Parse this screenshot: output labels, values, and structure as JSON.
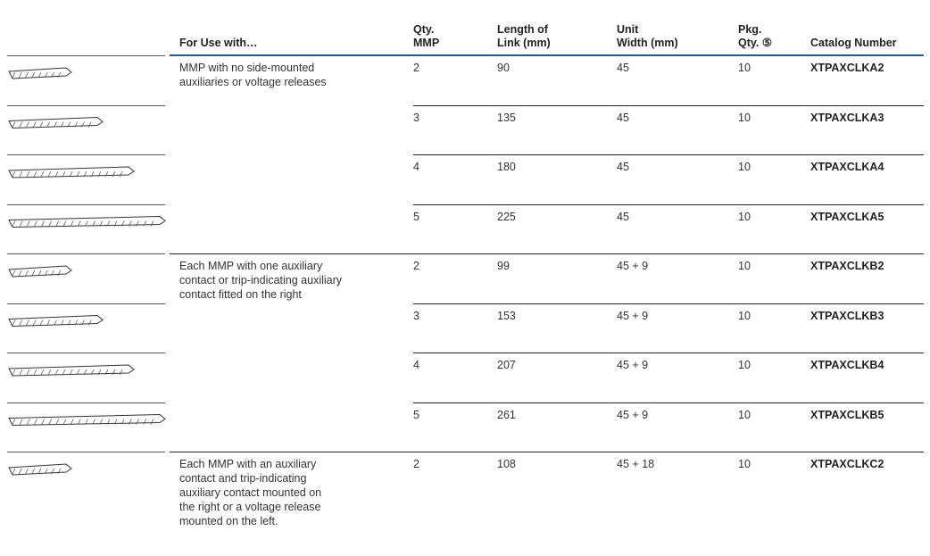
{
  "table": {
    "header": [
      [
        "For Use with…"
      ],
      [
        "Qty.",
        "MMP"
      ],
      [
        "Length of",
        "Link (mm)"
      ],
      [
        "Unit",
        "Width (mm)"
      ],
      [
        "Pkg.",
        "Qty. ⑤"
      ],
      [
        "Catalog Number"
      ]
    ],
    "groups": [
      {
        "use": [
          "MMP with no side-mounted",
          "auxiliaries or voltage releases"
        ],
        "rows": [
          [
            2,
            90,
            45,
            10,
            "XTPAXCLKA2"
          ],
          [
            3,
            135,
            45,
            10,
            "XTPAXCLKA3"
          ],
          [
            4,
            180,
            45,
            10,
            "XTPAXCLKA4"
          ],
          [
            5,
            225,
            45,
            10,
            "XTPAXCLKA5"
          ]
        ]
      },
      {
        "use": [
          "Each MMP with one auxiliary",
          "contact or trip-indicating auxiliary",
          "contact fitted on the right"
        ],
        "rows": [
          [
            2,
            99,
            "45 + 9",
            10,
            "XTPAXCLKB2"
          ],
          [
            3,
            153,
            "45 + 9",
            10,
            "XTPAXCLKB3"
          ],
          [
            4,
            207,
            "45 + 9",
            10,
            "XTPAXCLKB4"
          ],
          [
            5,
            261,
            "45 + 9",
            10,
            "XTPAXCLKB5"
          ]
        ]
      },
      {
        "use": [
          "Each MMP with an auxiliary",
          "contact and trip-indicating",
          "auxiliary contact mounted on",
          "the right or a voltage release",
          "mounted on the left."
        ],
        "rows": [
          [
            2,
            108,
            "45 + 18",
            10,
            "XTPAXCLKC2"
          ]
        ]
      }
    ]
  }
}
